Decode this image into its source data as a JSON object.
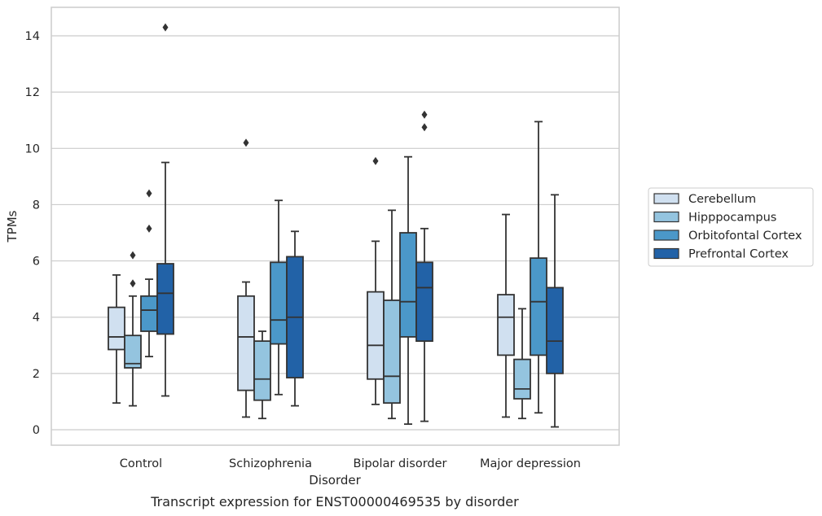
{
  "chart_data": {
    "type": "box",
    "caption": "Transcript expression for ENST00000469535 by disorder",
    "xlabel": "Disorder",
    "ylabel": "TPMs",
    "ylim": [
      -0.5,
      15
    ],
    "yticks": [
      0,
      2,
      4,
      6,
      8,
      10,
      12,
      14
    ],
    "grid": "horizontal",
    "legend_position": "right",
    "categories": [
      "Control",
      "Schizophrenia",
      "Bipolar disorder",
      "Major depression"
    ],
    "colors": [
      "#d0e0f0",
      "#94c4df",
      "#4b98c9",
      "#2262a7"
    ],
    "series": [
      {
        "name": "Cerebellum",
        "boxes": [
          {
            "whislo": 0.95,
            "q1": 2.85,
            "med": 3.3,
            "q3": 4.35,
            "whishi": 5.5,
            "fliers": []
          },
          {
            "whislo": 0.45,
            "q1": 1.4,
            "med": 3.3,
            "q3": 4.75,
            "whishi": 5.25,
            "fliers": [
              10.2
            ]
          },
          {
            "whislo": 0.9,
            "q1": 1.8,
            "med": 3.0,
            "q3": 4.9,
            "whishi": 6.7,
            "fliers": [
              9.55
            ]
          },
          {
            "whislo": 0.45,
            "q1": 2.65,
            "med": 4.0,
            "q3": 4.8,
            "whishi": 7.65,
            "fliers": []
          }
        ]
      },
      {
        "name": "Hipppocampus",
        "boxes": [
          {
            "whislo": 0.85,
            "q1": 2.2,
            "med": 2.35,
            "q3": 3.35,
            "whishi": 4.75,
            "fliers": [
              5.2,
              6.2
            ]
          },
          {
            "whislo": 0.4,
            "q1": 1.05,
            "med": 1.8,
            "q3": 3.15,
            "whishi": 3.5,
            "fliers": []
          },
          {
            "whislo": 0.4,
            "q1": 0.95,
            "med": 1.9,
            "q3": 4.6,
            "whishi": 7.8,
            "fliers": []
          },
          {
            "whislo": 0.4,
            "q1": 1.1,
            "med": 1.45,
            "q3": 2.5,
            "whishi": 4.3,
            "fliers": []
          }
        ]
      },
      {
        "name": "Orbitofontal Cortex",
        "boxes": [
          {
            "whislo": 2.6,
            "q1": 3.5,
            "med": 4.25,
            "q3": 4.75,
            "whishi": 5.35,
            "fliers": [
              7.15,
              8.4
            ]
          },
          {
            "whislo": 1.25,
            "q1": 3.05,
            "med": 3.9,
            "q3": 5.95,
            "whishi": 8.15,
            "fliers": []
          },
          {
            "whislo": 0.2,
            "q1": 3.3,
            "med": 4.55,
            "q3": 7.0,
            "whishi": 9.7,
            "fliers": []
          },
          {
            "whislo": 0.6,
            "q1": 2.65,
            "med": 4.55,
            "q3": 6.1,
            "whishi": 10.95,
            "fliers": []
          }
        ]
      },
      {
        "name": "Prefrontal Cortex",
        "boxes": [
          {
            "whislo": 1.2,
            "q1": 3.4,
            "med": 4.85,
            "q3": 5.9,
            "whishi": 9.5,
            "fliers": [
              14.3
            ]
          },
          {
            "whislo": 0.85,
            "q1": 1.85,
            "med": 4.0,
            "q3": 6.15,
            "whishi": 7.05,
            "fliers": []
          },
          {
            "whislo": 0.3,
            "q1": 3.15,
            "med": 5.05,
            "q3": 5.95,
            "whishi": 7.15,
            "fliers": [
              10.75,
              11.2
            ]
          },
          {
            "whislo": 0.1,
            "q1": 2.0,
            "med": 3.15,
            "q3": 5.05,
            "whishi": 8.35,
            "fliers": []
          }
        ]
      }
    ]
  }
}
